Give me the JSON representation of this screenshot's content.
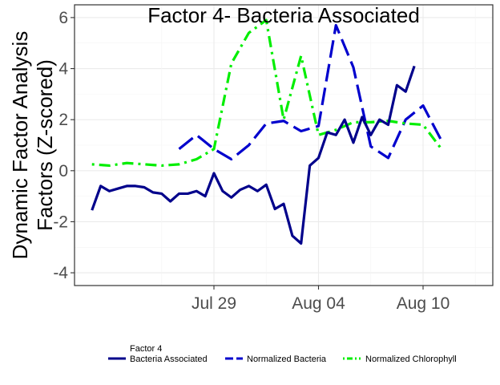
{
  "chart_data": {
    "type": "line",
    "title": "Factor 4- Bacteria Associated",
    "ylabel_lines": [
      "Dynamic Factor Analysis",
      "Factors (Z-scored)"
    ],
    "xlabel": "",
    "ylim": [
      -4.5,
      6.5
    ],
    "yticks": [
      -4,
      -2,
      0,
      2,
      4,
      6
    ],
    "xlim": [
      "2019-07-21",
      "2019-08-14"
    ],
    "xticks": [
      {
        "date": "2019-07-29",
        "label": "Jul 29"
      },
      {
        "date": "2019-08-04",
        "label": "Aug 04"
      },
      {
        "date": "2019-08-10",
        "label": "Aug 10"
      }
    ],
    "grid": true,
    "legend_position": "bottom",
    "legend_title_lines": [
      "Factor 4",
      "Bacteria Associated"
    ],
    "series": [
      {
        "name": "Bacteria Associated",
        "color": "#00008B",
        "dash": "solid",
        "points": [
          [
            "2019-07-22",
            -1.55
          ],
          [
            "2019-07-22T12:00",
            -0.6
          ],
          [
            "2019-07-23",
            -0.8
          ],
          [
            "2019-07-23T12:00",
            -0.7
          ],
          [
            "2019-07-24",
            -0.6
          ],
          [
            "2019-07-24T12:00",
            -0.6
          ],
          [
            "2019-07-25",
            -0.65
          ],
          [
            "2019-07-25T12:00",
            -0.85
          ],
          [
            "2019-07-26",
            -0.9
          ],
          [
            "2019-07-26T12:00",
            -1.2
          ],
          [
            "2019-07-27",
            -0.9
          ],
          [
            "2019-07-27T12:00",
            -0.9
          ],
          [
            "2019-07-28",
            -0.8
          ],
          [
            "2019-07-28T12:00",
            -1.0
          ],
          [
            "2019-07-29",
            -0.1
          ],
          [
            "2019-07-29T12:00",
            -0.8
          ],
          [
            "2019-07-30",
            -1.05
          ],
          [
            "2019-07-30T12:00",
            -0.75
          ],
          [
            "2019-07-31",
            -0.6
          ],
          [
            "2019-07-31T12:00",
            -0.8
          ],
          [
            "2019-08-01",
            -0.55
          ],
          [
            "2019-08-01T12:00",
            -1.5
          ],
          [
            "2019-08-02",
            -1.3
          ],
          [
            "2019-08-02T12:00",
            -2.55
          ],
          [
            "2019-08-03",
            -2.85
          ],
          [
            "2019-08-03T12:00",
            0.2
          ],
          [
            "2019-08-04",
            0.5
          ],
          [
            "2019-08-04T12:00",
            1.5
          ],
          [
            "2019-08-05",
            1.4
          ],
          [
            "2019-08-05T12:00",
            2.0
          ],
          [
            "2019-08-06",
            1.1
          ],
          [
            "2019-08-06T12:00",
            2.1
          ],
          [
            "2019-08-07",
            1.4
          ],
          [
            "2019-08-07T12:00",
            2.0
          ],
          [
            "2019-08-08",
            1.8
          ],
          [
            "2019-08-08T12:00",
            3.35
          ],
          [
            "2019-08-09",
            3.1
          ],
          [
            "2019-08-09T12:00",
            4.1
          ]
        ]
      },
      {
        "name": "Normalized Bacteria",
        "color": "#0000CD",
        "dash": "longdash",
        "points": [
          [
            "2019-07-27",
            0.85
          ],
          [
            "2019-07-28",
            1.4
          ],
          [
            "2019-07-29",
            0.85
          ],
          [
            "2019-07-30",
            0.45
          ],
          [
            "2019-07-31",
            1.0
          ],
          [
            "2019-08-01",
            1.85
          ],
          [
            "2019-08-02",
            1.95
          ],
          [
            "2019-08-03",
            1.55
          ],
          [
            "2019-08-04",
            1.75
          ],
          [
            "2019-08-05",
            5.7
          ],
          [
            "2019-08-06",
            4.05
          ],
          [
            "2019-08-07",
            0.95
          ],
          [
            "2019-08-08",
            0.5
          ],
          [
            "2019-08-09",
            2.0
          ],
          [
            "2019-08-10",
            2.55
          ],
          [
            "2019-08-11",
            1.25
          ]
        ]
      },
      {
        "name": "Normalized Chlorophyll",
        "color": "#00EE00",
        "dash": "dotdash",
        "points": [
          [
            "2019-07-22",
            0.25
          ],
          [
            "2019-07-23",
            0.2
          ],
          [
            "2019-07-24",
            0.3
          ],
          [
            "2019-07-25",
            0.25
          ],
          [
            "2019-07-26",
            0.2
          ],
          [
            "2019-07-27",
            0.25
          ],
          [
            "2019-07-28",
            0.45
          ],
          [
            "2019-07-29",
            0.85
          ],
          [
            "2019-07-30",
            4.2
          ],
          [
            "2019-07-31",
            5.4
          ],
          [
            "2019-08-01",
            5.9
          ],
          [
            "2019-08-02",
            2.0
          ],
          [
            "2019-08-03",
            4.5
          ],
          [
            "2019-08-04",
            1.4
          ],
          [
            "2019-08-05",
            1.6
          ],
          [
            "2019-08-06",
            1.9
          ],
          [
            "2019-08-07",
            1.9
          ],
          [
            "2019-08-08",
            1.95
          ],
          [
            "2019-08-09",
            1.85
          ],
          [
            "2019-08-10",
            1.8
          ],
          [
            "2019-08-11",
            0.9
          ]
        ]
      }
    ]
  }
}
